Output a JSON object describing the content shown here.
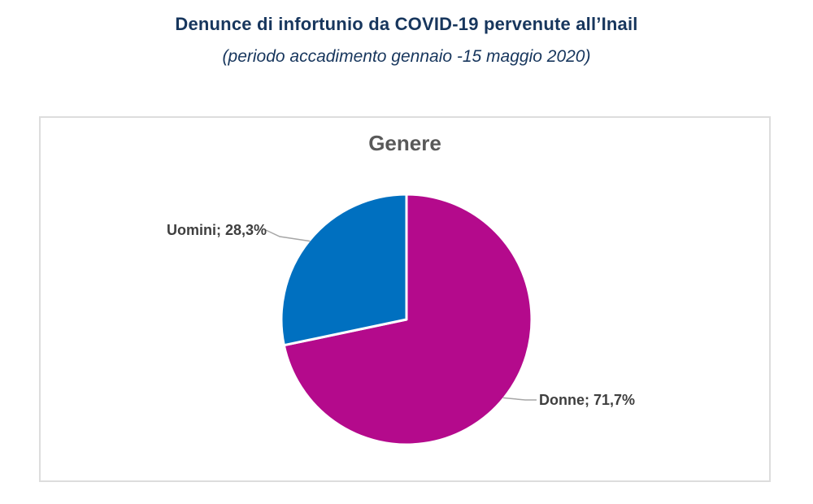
{
  "page": {
    "title": "Denunce di infortunio da COVID-19 pervenute all’Inail",
    "subtitle": "(periodo accadimento gennaio -15 maggio 2020)"
  },
  "chart_data": {
    "type": "pie",
    "title": "Genere",
    "slices": [
      {
        "name": "Donne",
        "value": 71.7,
        "label": "Donne; 71,7%",
        "color": "#B40A8C"
      },
      {
        "name": "Uomini",
        "value": 28.3,
        "label": "Uomini; 28,3%",
        "color": "#0070C0"
      }
    ],
    "start_angle_deg": 0,
    "direction": "clockwise",
    "legend": "none",
    "labels_position": "outside-end with leader lines",
    "colors": {
      "page_title_text": "#17365D",
      "chart_title_text": "#595959",
      "label_text": "#3F3F3F",
      "leader_line": "#A6A6A6",
      "slice_separator": "#FFFFFF",
      "frame_border": "#DDDDDD"
    }
  }
}
